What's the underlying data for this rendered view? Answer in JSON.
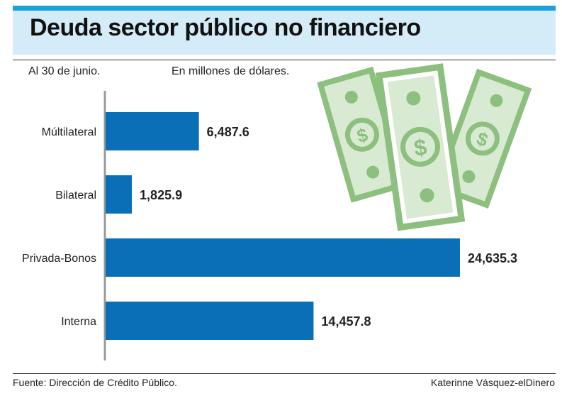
{
  "header": {
    "title": "Deuda sector público no financiero",
    "date_note": "Al 30 de junio.",
    "units_note": "En millones de dólares."
  },
  "footer": {
    "source": "Fuente: Dirección de Crédito Público.",
    "credit": "Katerinne Vásquez-elDinero"
  },
  "illustration": {
    "icon": "money-bills-icon",
    "color": "#8dbf7e"
  },
  "colors": {
    "bar": "#0a6fb7",
    "accent": "#1aa0dd",
    "band": "#d4ecf7"
  },
  "chart_data": {
    "type": "bar",
    "orientation": "horizontal",
    "categories": [
      "Múltilateral",
      "Bilateral",
      "Privada-Bonos",
      "Interna"
    ],
    "values": [
      6487.6,
      1825.9,
      24635.3,
      14457.8
    ],
    "value_labels": [
      "6,487.6",
      "1,825.9",
      "24,635.3",
      "14,457.8"
    ],
    "xlim": [
      0,
      24635.3
    ],
    "grid": false,
    "legend": "none"
  }
}
